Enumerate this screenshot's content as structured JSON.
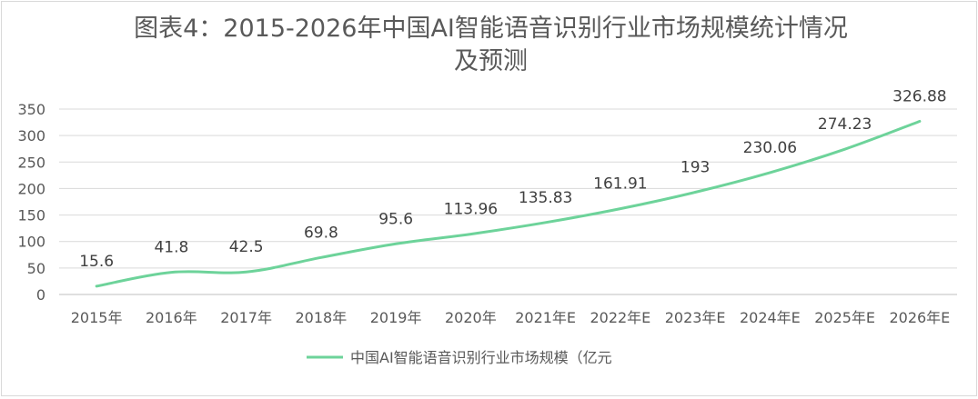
{
  "chart_data": {
    "type": "line",
    "title": "图表4：2015-2026年中国AI智能语音识别行业市场规模统计情况\n及预测",
    "categories": [
      "2015年",
      "2016年",
      "2017年",
      "2018年",
      "2019年",
      "2020年",
      "2021年E",
      "2022年E",
      "2023年E",
      "2024年E",
      "2025年E",
      "2026年E"
    ],
    "series": [
      {
        "name": "中国AI智能语音识别行业市场规模（亿元",
        "values": [
          15.6,
          41.8,
          42.5,
          69.8,
          95.6,
          113.96,
          135.83,
          161.91,
          193,
          230.06,
          274.23,
          326.88
        ],
        "labels": [
          "15.6",
          "41.8",
          "42.5",
          "69.8",
          "95.6",
          "113.96",
          "135.83",
          "161.91",
          "193",
          "230.06",
          "274.23",
          "326.88"
        ],
        "color": "#6dd39a"
      }
    ],
    "ylim": [
      0,
      350
    ],
    "yticks": [
      0,
      50,
      100,
      150,
      200,
      250,
      300,
      350
    ],
    "grid": true,
    "legend_position": "bottom",
    "smooth": true
  },
  "colors": {
    "gridline": "#d9d9d9",
    "axis_text": "#595959",
    "label_text": "#404040"
  }
}
